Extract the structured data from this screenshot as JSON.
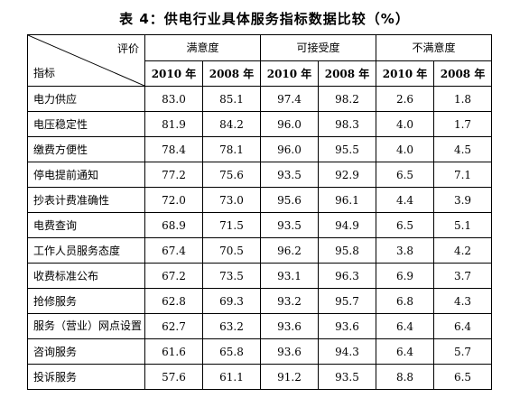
{
  "title": "表 4：供电行业具体服务指标数据比较（%）",
  "header": {
    "corner_top": "评价",
    "corner_bottom": "指标",
    "groups": [
      "满意度",
      "可接受度",
      "不满意度"
    ],
    "years": [
      "2010 年",
      "2008 年",
      "2010 年",
      "2008 年",
      "2010 年",
      "2008 年"
    ]
  },
  "rows": [
    {
      "name": "电力供应",
      "values": [
        "83.0",
        "85.1",
        "97.4",
        "98.2",
        "2.6",
        "1.8"
      ]
    },
    {
      "name": "电压稳定性",
      "values": [
        "81.9",
        "84.2",
        "96.0",
        "98.3",
        "4.0",
        "1.7"
      ]
    },
    {
      "name": "缴费方便性",
      "values": [
        "78.4",
        "78.1",
        "96.0",
        "95.5",
        "4.0",
        "4.5"
      ]
    },
    {
      "name": "停电提前通知",
      "values": [
        "77.2",
        "75.6",
        "93.5",
        "92.9",
        "6.5",
        "7.1"
      ]
    },
    {
      "name": "抄表计费准确性",
      "values": [
        "72.0",
        "73.0",
        "95.6",
        "96.1",
        "4.4",
        "3.9"
      ]
    },
    {
      "name": "电费查询",
      "values": [
        "68.9",
        "71.5",
        "93.5",
        "94.9",
        "6.5",
        "5.1"
      ]
    },
    {
      "name": "工作人员服务态度",
      "values": [
        "67.4",
        "70.5",
        "96.2",
        "95.8",
        "3.8",
        "4.2"
      ]
    },
    {
      "name": "收费标准公布",
      "values": [
        "67.2",
        "73.5",
        "93.1",
        "96.3",
        "6.9",
        "3.7"
      ]
    },
    {
      "name": "抢修服务",
      "values": [
        "62.8",
        "69.3",
        "93.2",
        "95.7",
        "6.8",
        "4.3"
      ]
    },
    {
      "name": "服务（营业）网点设置",
      "values": [
        "62.7",
        "63.2",
        "93.6",
        "93.6",
        "6.4",
        "6.4"
      ]
    },
    {
      "name": "咨询服务",
      "values": [
        "61.6",
        "65.8",
        "93.6",
        "94.3",
        "6.4",
        "5.7"
      ]
    },
    {
      "name": "投诉服务",
      "values": [
        "57.6",
        "61.1",
        "91.2",
        "93.5",
        "8.8",
        "6.5"
      ]
    }
  ]
}
